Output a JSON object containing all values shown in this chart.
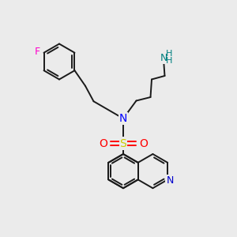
{
  "background_color": "#ebebeb",
  "bond_color": "#1a1a1a",
  "bond_width": 1.4,
  "atom_colors": {
    "N": "#0000ff",
    "O": "#ff0000",
    "S": "#cccc00",
    "F": "#ff00cc",
    "NH2": "#008080",
    "ring_N": "#0000cc"
  },
  "figsize": [
    3.0,
    3.0
  ],
  "dpi": 100
}
